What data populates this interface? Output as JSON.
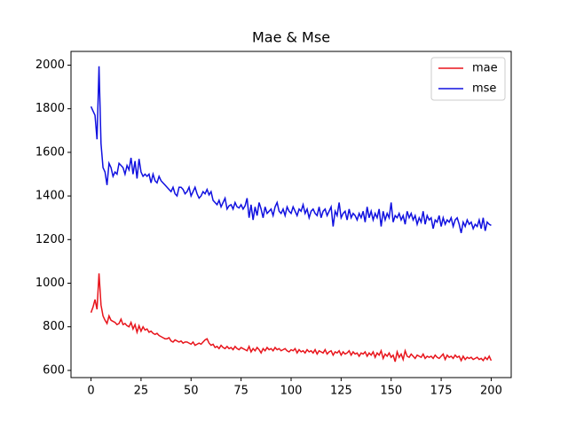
{
  "chart_data": {
    "type": "line",
    "title": "Mae & Mse",
    "x": [
      0,
      1,
      2,
      3,
      4,
      5,
      6,
      7,
      8,
      9,
      10,
      11,
      12,
      13,
      14,
      15,
      16,
      17,
      18,
      19,
      20,
      21,
      22,
      23,
      24,
      25,
      26,
      27,
      28,
      29,
      30,
      31,
      32,
      33,
      34,
      35,
      36,
      37,
      38,
      39,
      40,
      41,
      42,
      43,
      44,
      45,
      46,
      47,
      48,
      49,
      50,
      51,
      52,
      53,
      54,
      55,
      56,
      57,
      58,
      59,
      60,
      61,
      62,
      63,
      64,
      65,
      66,
      67,
      68,
      69,
      70,
      71,
      72,
      73,
      74,
      75,
      76,
      77,
      78,
      79,
      80,
      81,
      82,
      83,
      84,
      85,
      86,
      87,
      88,
      89,
      90,
      91,
      92,
      93,
      94,
      95,
      96,
      97,
      98,
      99,
      100,
      101,
      102,
      103,
      104,
      105,
      106,
      107,
      108,
      109,
      110,
      111,
      112,
      113,
      114,
      115,
      116,
      117,
      118,
      119,
      120,
      121,
      122,
      123,
      124,
      125,
      126,
      127,
      128,
      129,
      130,
      131,
      132,
      133,
      134,
      135,
      136,
      137,
      138,
      139,
      140,
      141,
      142,
      143,
      144,
      145,
      146,
      147,
      148,
      149,
      150,
      151,
      152,
      153,
      154,
      155,
      156,
      157,
      158,
      159,
      160,
      161,
      162,
      163,
      164,
      165,
      166,
      167,
      168,
      169,
      170,
      171,
      172,
      173,
      174,
      175,
      176,
      177,
      178,
      179,
      180,
      181,
      182,
      183,
      184,
      185,
      186,
      187,
      188,
      189,
      190,
      191,
      192,
      193,
      194,
      195,
      196,
      197,
      198,
      199,
      200
    ],
    "series": [
      {
        "name": "mae",
        "color": "#e8141b",
        "values": [
          865,
          890,
          925,
          880,
          1045,
          900,
          850,
          830,
          815,
          850,
          830,
          825,
          820,
          810,
          815,
          835,
          810,
          815,
          805,
          800,
          820,
          790,
          810,
          775,
          805,
          780,
          800,
          785,
          790,
          775,
          780,
          770,
          765,
          770,
          760,
          755,
          750,
          745,
          745,
          750,
          735,
          730,
          740,
          735,
          730,
          735,
          725,
          730,
          730,
          725,
          720,
          730,
          715,
          720,
          725,
          720,
          730,
          740,
          745,
          725,
          715,
          720,
          705,
          710,
          700,
          715,
          705,
          700,
          710,
          700,
          705,
          695,
          710,
          700,
          695,
          705,
          700,
          695,
          690,
          710,
          685,
          700,
          690,
          705,
          695,
          680,
          700,
          690,
          705,
          695,
          700,
          690,
          705,
          695,
          700,
          690,
          695,
          700,
          690,
          685,
          695,
          690,
          700,
          680,
          695,
          685,
          690,
          680,
          695,
          685,
          690,
          680,
          695,
          675,
          690,
          685,
          680,
          695,
          675,
          685,
          690,
          670,
          685,
          680,
          690,
          670,
          685,
          675,
          680,
          690,
          670,
          685,
          675,
          680,
          665,
          680,
          675,
          685,
          665,
          680,
          670,
          685,
          660,
          680,
          670,
          690,
          655,
          675,
          665,
          680,
          660,
          670,
          640,
          685,
          660,
          675,
          650,
          690,
          665,
          660,
          675,
          665,
          655,
          670,
          665,
          660,
          675,
          655,
          665,
          660,
          665,
          655,
          670,
          660,
          655,
          665,
          675,
          650,
          670,
          660,
          665,
          655,
          670,
          660,
          665,
          645,
          665,
          650,
          660,
          655,
          660,
          650,
          655,
          660,
          650,
          655,
          645,
          660,
          650,
          665,
          645
        ]
      },
      {
        "name": "mse",
        "color": "#1010e0",
        "values": [
          1810,
          1790,
          1770,
          1660,
          1995,
          1640,
          1530,
          1510,
          1450,
          1550,
          1530,
          1490,
          1510,
          1500,
          1550,
          1540,
          1530,
          1500,
          1540,
          1520,
          1575,
          1500,
          1560,
          1480,
          1570,
          1510,
          1490,
          1500,
          1490,
          1500,
          1460,
          1500,
          1470,
          1460,
          1490,
          1470,
          1460,
          1450,
          1440,
          1430,
          1420,
          1440,
          1410,
          1400,
          1440,
          1440,
          1430,
          1410,
          1420,
          1440,
          1400,
          1420,
          1440,
          1410,
          1390,
          1400,
          1420,
          1410,
          1430,
          1405,
          1420,
          1380,
          1370,
          1360,
          1380,
          1350,
          1370,
          1390,
          1340,
          1355,
          1360,
          1340,
          1370,
          1350,
          1345,
          1360,
          1340,
          1355,
          1390,
          1300,
          1360,
          1290,
          1350,
          1310,
          1370,
          1340,
          1300,
          1350,
          1320,
          1330,
          1340,
          1310,
          1350,
          1370,
          1330,
          1320,
          1340,
          1310,
          1350,
          1330,
          1320,
          1350,
          1330,
          1310,
          1340,
          1330,
          1360,
          1320,
          1340,
          1300,
          1330,
          1340,
          1320,
          1310,
          1350,
          1300,
          1330,
          1340,
          1310,
          1330,
          1350,
          1260,
          1330,
          1310,
          1370,
          1300,
          1320,
          1330,
          1290,
          1340,
          1300,
          1320,
          1310,
          1290,
          1320,
          1300,
          1330,
          1280,
          1350,
          1300,
          1330,
          1290,
          1320,
          1300,
          1340,
          1260,
          1330,
          1290,
          1320,
          1300,
          1370,
          1280,
          1310,
          1300,
          1320,
          1290,
          1310,
          1270,
          1330,
          1300,
          1320,
          1290,
          1310,
          1270,
          1300,
          1280,
          1330,
          1270,
          1310,
          1290,
          1300,
          1250,
          1290,
          1280,
          1310,
          1260,
          1300,
          1270,
          1290,
          1280,
          1300,
          1260,
          1290,
          1300,
          1270,
          1230,
          1280,
          1260,
          1290,
          1270,
          1280,
          1250,
          1270,
          1260,
          1290,
          1250,
          1300,
          1240,
          1280,
          1270,
          1265
        ]
      }
    ],
    "xlim": [
      -10,
      210
    ],
    "ylim": [
      567,
      2063
    ],
    "xticks": [
      0,
      25,
      50,
      75,
      100,
      125,
      150,
      175,
      200
    ],
    "yticks": [
      600,
      800,
      1000,
      1200,
      1400,
      1600,
      1800,
      2000
    ],
    "legend": "upper right"
  }
}
